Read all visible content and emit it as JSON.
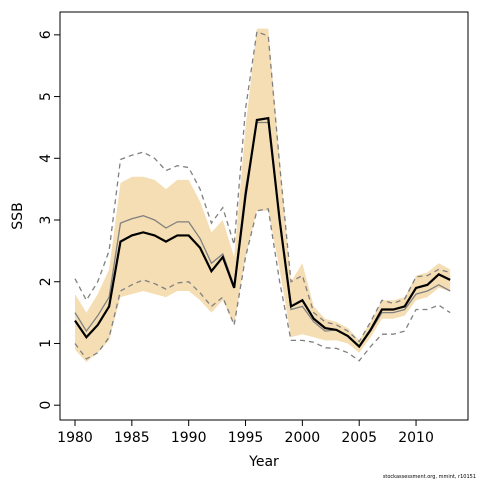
{
  "chart_data": {
    "type": "line",
    "xlabel": "Year",
    "ylabel": "SSB",
    "footnote": "stockassessment.org, mmint, r10151",
    "x": [
      1980,
      1981,
      1982,
      1983,
      1984,
      1985,
      1986,
      1987,
      1988,
      1989,
      1990,
      1991,
      1992,
      1993,
      1994,
      1995,
      1996,
      1997,
      1998,
      1999,
      2000,
      2001,
      2002,
      2003,
      2004,
      2005,
      2006,
      2007,
      2008,
      2009,
      2010,
      2011,
      2012,
      2013
    ],
    "band": {
      "color": "#f5deb3",
      "upper": [
        1.8,
        1.5,
        1.8,
        2.2,
        3.6,
        3.7,
        3.7,
        3.65,
        3.5,
        3.65,
        3.65,
        3.3,
        2.8,
        3.0,
        2.4,
        4.5,
        6.1,
        6.1,
        4.0,
        2.0,
        2.3,
        1.6,
        1.4,
        1.35,
        1.25,
        1.05,
        1.35,
        1.7,
        1.7,
        1.75,
        2.1,
        2.15,
        2.3,
        2.2
      ],
      "lower": [
        0.9,
        0.7,
        0.85,
        1.05,
        1.75,
        1.8,
        1.85,
        1.8,
        1.75,
        1.85,
        1.85,
        1.7,
        1.5,
        1.7,
        1.3,
        2.4,
        3.15,
        3.15,
        2.2,
        1.1,
        1.15,
        1.1,
        1.05,
        1.05,
        1.0,
        0.85,
        1.1,
        1.4,
        1.4,
        1.45,
        1.7,
        1.75,
        1.9,
        1.85
      ]
    },
    "series": [
      {
        "color": "#808080",
        "dashed": true,
        "values": [
          2.05,
          1.7,
          2.0,
          2.5,
          3.98,
          4.05,
          4.1,
          4.0,
          3.8,
          3.88,
          3.85,
          3.5,
          2.95,
          3.2,
          2.6,
          4.8,
          6.05,
          5.98,
          3.9,
          2.0,
          2.1,
          1.5,
          1.35,
          1.3,
          1.2,
          1.03,
          1.35,
          1.7,
          1.65,
          1.72,
          2.08,
          2.1,
          2.2,
          2.15
        ]
      },
      {
        "color": "#808080",
        "dashed": true,
        "values": [
          1.0,
          0.75,
          0.85,
          1.1,
          1.85,
          1.95,
          2.03,
          1.97,
          1.88,
          1.98,
          2.0,
          1.82,
          1.6,
          1.75,
          1.3,
          2.4,
          3.15,
          3.18,
          2.0,
          1.05,
          1.05,
          1.02,
          0.93,
          0.92,
          0.85,
          0.72,
          0.95,
          1.15,
          1.15,
          1.2,
          1.55,
          1.55,
          1.62,
          1.5
        ]
      },
      {
        "color": "#808080",
        "dashed": false,
        "values": [
          1.5,
          1.2,
          1.45,
          1.75,
          2.95,
          3.02,
          3.07,
          3.0,
          2.87,
          2.97,
          2.97,
          2.7,
          2.3,
          2.45,
          1.93,
          3.5,
          4.58,
          4.58,
          3.0,
          1.55,
          1.6,
          1.35,
          1.2,
          1.22,
          1.12,
          0.95,
          1.2,
          1.5,
          1.5,
          1.55,
          1.8,
          1.85,
          1.95,
          1.85
        ]
      },
      {
        "color": "#000000",
        "dashed": false,
        "values": [
          1.37,
          1.1,
          1.3,
          1.6,
          2.65,
          2.75,
          2.8,
          2.75,
          2.65,
          2.75,
          2.75,
          2.55,
          2.17,
          2.4,
          1.9,
          3.4,
          4.62,
          4.65,
          3.0,
          1.6,
          1.7,
          1.4,
          1.25,
          1.22,
          1.12,
          0.95,
          1.22,
          1.55,
          1.55,
          1.6,
          1.9,
          1.95,
          2.12,
          2.03
        ]
      }
    ],
    "xlim": [
      1978.68,
      2014.57
    ],
    "ylim": [
      -0.24,
      6.37
    ],
    "xticks": [
      1980,
      1985,
      1990,
      1995,
      2000,
      2005,
      2010
    ],
    "yticks": [
      0,
      1,
      2,
      3,
      4,
      5,
      6
    ]
  }
}
